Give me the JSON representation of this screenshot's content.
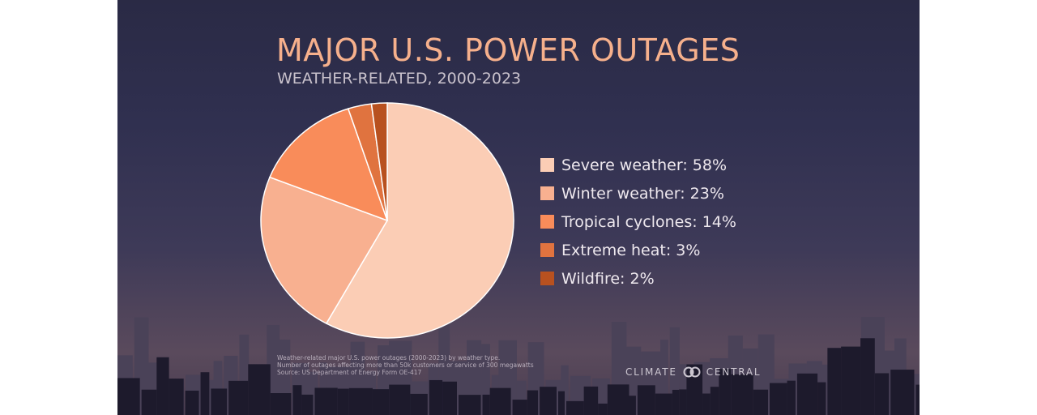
{
  "title": "MAJOR U.S. POWER OUTAGES",
  "subtitle": "WEATHER-RELATED, 2000-2023",
  "chart_data": {
    "type": "pie",
    "title": "MAJOR U.S. POWER OUTAGES",
    "subtitle": "WEATHER-RELATED, 2000-2023",
    "slices": [
      {
        "label": "Severe weather: 58%",
        "value": 58,
        "color": "#fbcdb5"
      },
      {
        "label": "Winter weather: 23%",
        "value": 23,
        "color": "#f8b090"
      },
      {
        "label": "Tropical cyclones: 14%",
        "value": 14,
        "color": "#f98c5a"
      },
      {
        "label": "Extreme heat: 3%",
        "value": 3,
        "color": "#e0733f"
      },
      {
        "label": "Wildfire: 2%",
        "value": 2,
        "color": "#b8511f"
      }
    ],
    "legend_position": "right"
  },
  "notes": [
    "Weather-related major U.S. power outages (2000-2023) by weather type.",
    "Number of outages affecting more than 50k customers or service of 300 megawatts",
    "Source: US Department of Energy Form OE-417"
  ],
  "logo": {
    "left": "CLIMATE",
    "right": "CENTRAL"
  }
}
